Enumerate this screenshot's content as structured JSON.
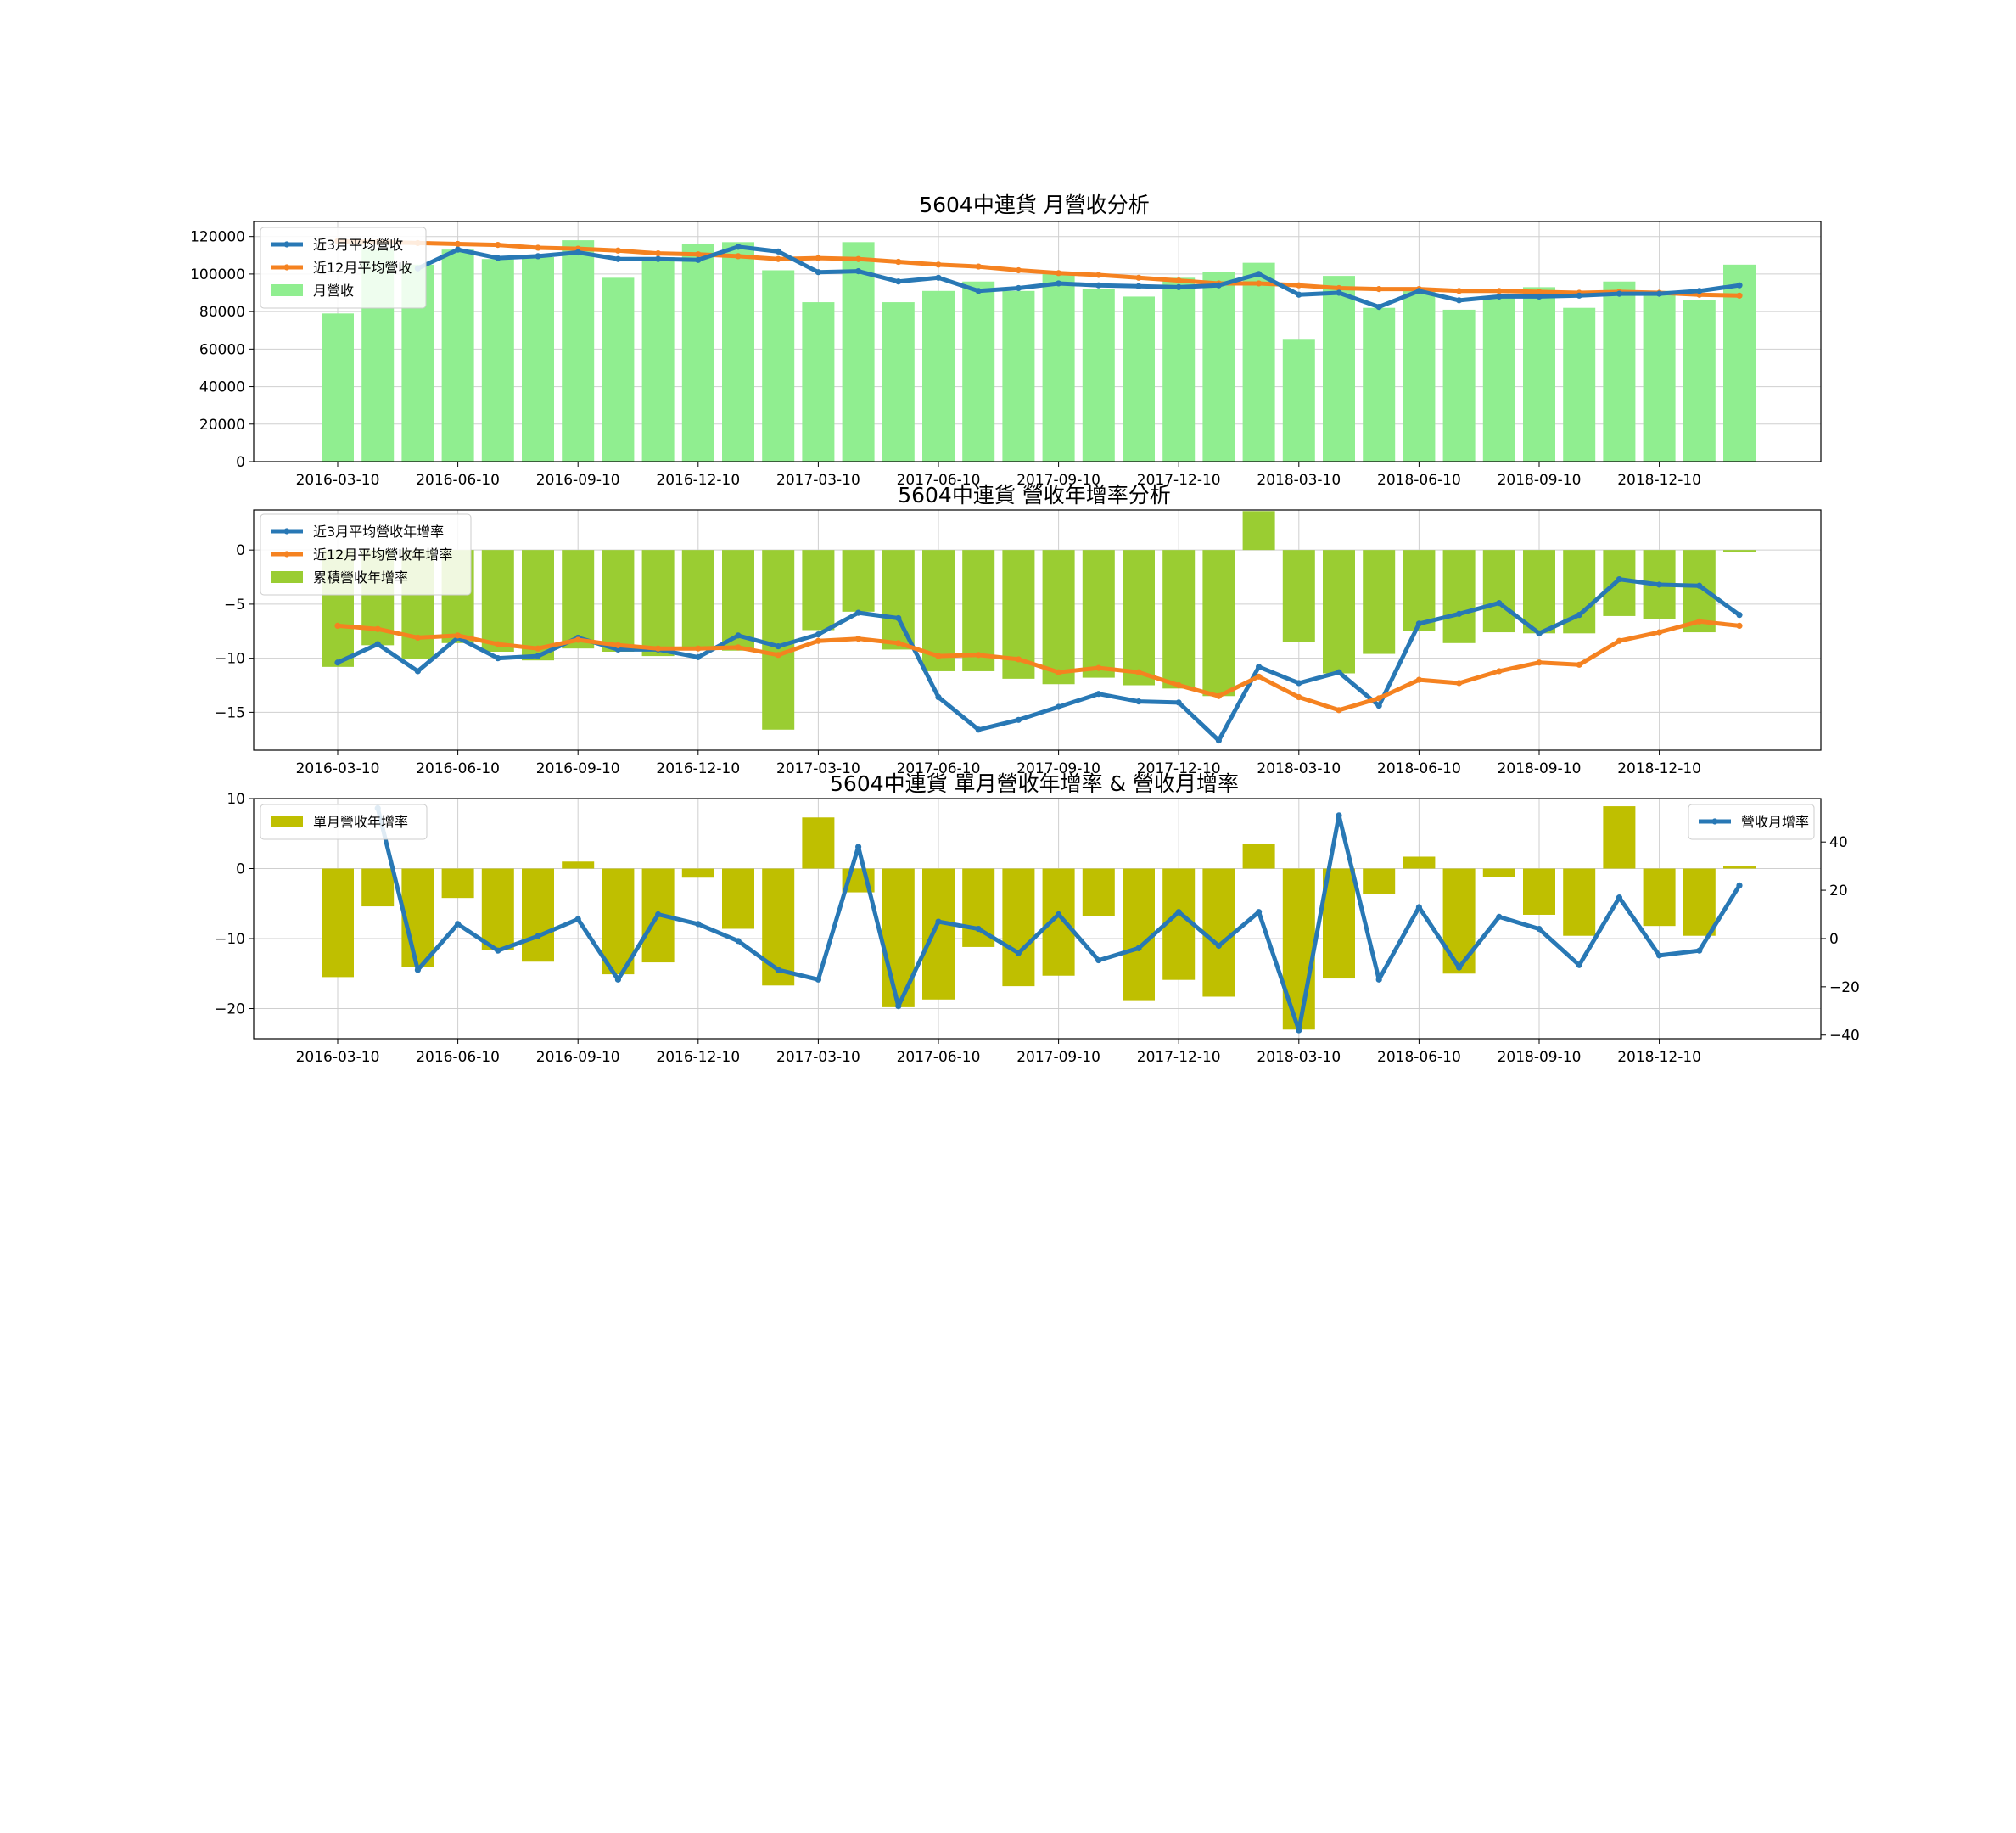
{
  "x_tick_labels": [
    "2016-03-10",
    "2016-06-10",
    "2016-09-10",
    "2016-12-10",
    "2017-03-10",
    "2017-06-10",
    "2017-09-10",
    "2017-12-10",
    "2018-03-10",
    "2018-06-10",
    "2018-09-10",
    "2018-12-10"
  ],
  "colors": {
    "blue": "#2878b5",
    "orange": "#f58220",
    "lightgreen": "#90ee90",
    "yellowgreen": "#9acd32",
    "olive": "#bfbf00",
    "grid": "#cfcfcf"
  },
  "chart_data": [
    {
      "type": "bar+line",
      "title": "5604中連貨 月營收分析",
      "ylim": [
        0,
        128000
      ],
      "yticks": [
        0,
        20000,
        40000,
        60000,
        80000,
        100000,
        120000
      ],
      "grid": true,
      "legend_position": "upper-left",
      "x": [
        "2016-03",
        "2016-04",
        "2016-05",
        "2016-06",
        "2016-07",
        "2016-08",
        "2016-09",
        "2016-10",
        "2016-11",
        "2016-12",
        "2017-01",
        "2017-02",
        "2017-03",
        "2017-04",
        "2017-05",
        "2017-06",
        "2017-07",
        "2017-08",
        "2017-09",
        "2017-10",
        "2017-11",
        "2017-12",
        "2018-01",
        "2018-02",
        "2018-03",
        "2018-04",
        "2018-05",
        "2018-06",
        "2018-07",
        "2018-08",
        "2018-09",
        "2018-10",
        "2018-11",
        "2018-12",
        "2019-01",
        "2019-02"
      ],
      "series": [
        {
          "name": "月營收",
          "kind": "bar",
          "color": "#90ee90",
          "values": [
            79000,
            113000,
            105000,
            113000,
            108000,
            109000,
            118000,
            98000,
            109000,
            116000,
            117000,
            102000,
            85000,
            117000,
            85000,
            91000,
            96000,
            91000,
            101000,
            92000,
            88000,
            98000,
            101000,
            106000,
            65000,
            99000,
            82000,
            91000,
            81000,
            88000,
            93000,
            82000,
            96000,
            91000,
            86000,
            105000
          ]
        },
        {
          "name": "近3月平均營收",
          "kind": "line",
          "color": "#2878b5",
          "values": [
            null,
            null,
            103000,
            113000,
            108500,
            109500,
            111500,
            108000,
            108000,
            107500,
            114500,
            112000,
            101000,
            101500,
            96000,
            98000,
            91000,
            92500,
            95000,
            94000,
            93500,
            93000,
            94000,
            100000,
            89000,
            90000,
            82500,
            91000,
            86000,
            88000,
            88000,
            88500,
            89500,
            89500,
            91000,
            94000
          ]
        },
        {
          "name": "近12月平均營收",
          "kind": "line",
          "color": "#f58220",
          "values": [
            117500,
            117000,
            116500,
            116000,
            115500,
            114000,
            113500,
            112500,
            111000,
            110500,
            109500,
            108000,
            108500,
            108000,
            106500,
            105000,
            104000,
            102000,
            100500,
            99500,
            98000,
            96500,
            95000,
            95000,
            94000,
            92500,
            92000,
            92000,
            91000,
            91000,
            90500,
            90000,
            90500,
            90000,
            89000,
            88500
          ]
        }
      ]
    },
    {
      "type": "bar+line",
      "title": "5604中連貨 營收年增率分析",
      "ylim": [
        -18.5,
        3.7
      ],
      "yticks": [
        -15,
        -10,
        -5,
        0
      ],
      "grid": true,
      "legend_position": "upper-left",
      "series": [
        {
          "name": "累積營收年增率",
          "kind": "bar",
          "color": "#9acd32",
          "values": [
            -10.8,
            -8.8,
            -10.1,
            -8.6,
            -9.4,
            -10.2,
            -9.1,
            -9.4,
            -9.8,
            -9.2,
            -9.3,
            -16.6,
            -7.4,
            -5.7,
            -9.2,
            -11.2,
            -11.2,
            -11.9,
            -12.4,
            -11.8,
            -12.5,
            -12.8,
            -13.5,
            3.6,
            -8.5,
            -11.4,
            -9.6,
            -7.5,
            -8.6,
            -7.6,
            -7.7,
            -7.7,
            -6.1,
            -6.4,
            -7.6,
            -0.2
          ]
        },
        {
          "name": "近3月平均營收年增率",
          "kind": "line",
          "color": "#2878b5",
          "values": [
            -10.4,
            -8.7,
            -11.2,
            -8.1,
            -10.0,
            -9.8,
            -8.1,
            -9.2,
            -9.2,
            -9.9,
            -7.9,
            -8.9,
            -7.8,
            -5.8,
            -6.3,
            -13.6,
            -16.6,
            -15.7,
            -14.5,
            -13.3,
            -14.0,
            -14.1,
            -17.6,
            -10.8,
            -12.3,
            -11.3,
            -14.4,
            -6.8,
            -5.9,
            -4.9,
            -7.7,
            -6.0,
            -2.7,
            -3.2,
            -3.3,
            -6.0
          ]
        },
        {
          "name": "近12月平均營收年增率",
          "kind": "line",
          "color": "#f58220",
          "values": [
            -7.0,
            -7.3,
            -8.1,
            -7.9,
            -8.7,
            -9.1,
            -8.3,
            -8.8,
            -9.1,
            -9.1,
            -9.0,
            -9.7,
            -8.4,
            -8.2,
            -8.6,
            -9.8,
            -9.7,
            -10.1,
            -11.3,
            -10.9,
            -11.3,
            -12.5,
            -13.5,
            -11.7,
            -13.6,
            -14.8,
            -13.7,
            -12.0,
            -12.3,
            -11.2,
            -10.4,
            -10.6,
            -8.4,
            -7.6,
            -6.6,
            -7.0
          ]
        }
      ]
    },
    {
      "type": "bar+line-dual-axis",
      "title": "5604中連貨 單月營收年增率 & 營收月增率",
      "ylim_left": [
        -24.3,
        10.0
      ],
      "yticks_left": [
        -20,
        -10,
        0,
        10
      ],
      "ylim_right": [
        -41.5,
        58.0
      ],
      "yticks_right": [
        -40,
        -20,
        0,
        20,
        40
      ],
      "grid": true,
      "legend_left_position": "upper-left",
      "legend_right_position": "upper-right",
      "series": [
        {
          "name": "單月營收年增率",
          "kind": "bar",
          "axis": "left",
          "color": "#bfbf00",
          "values": [
            -15.5,
            -5.4,
            -14.1,
            -4.2,
            -11.6,
            -13.3,
            1.0,
            -15.1,
            -13.4,
            -1.3,
            -8.6,
            -16.7,
            7.3,
            -3.4,
            -19.8,
            -18.7,
            -11.2,
            -16.8,
            -15.3,
            -6.8,
            -18.8,
            -15.9,
            -18.3,
            3.5,
            -23.0,
            -15.7,
            -3.6,
            1.7,
            -15.0,
            -1.2,
            -6.6,
            -9.6,
            8.9,
            -8.2,
            -9.6,
            0.3
          ]
        },
        {
          "name": "營收月增率",
          "kind": "line",
          "axis": "right",
          "color": "#2878b5",
          "values": [
            null,
            54,
            -13,
            6,
            -5,
            1,
            8,
            -17,
            10,
            6,
            -1,
            -13,
            -17,
            38,
            -28,
            7,
            4,
            -6,
            10,
            -9,
            -4,
            11,
            -3,
            11,
            -38,
            51,
            -17,
            13,
            -12,
            9,
            4,
            -11,
            17,
            -7,
            -5,
            22
          ]
        }
      ]
    }
  ]
}
